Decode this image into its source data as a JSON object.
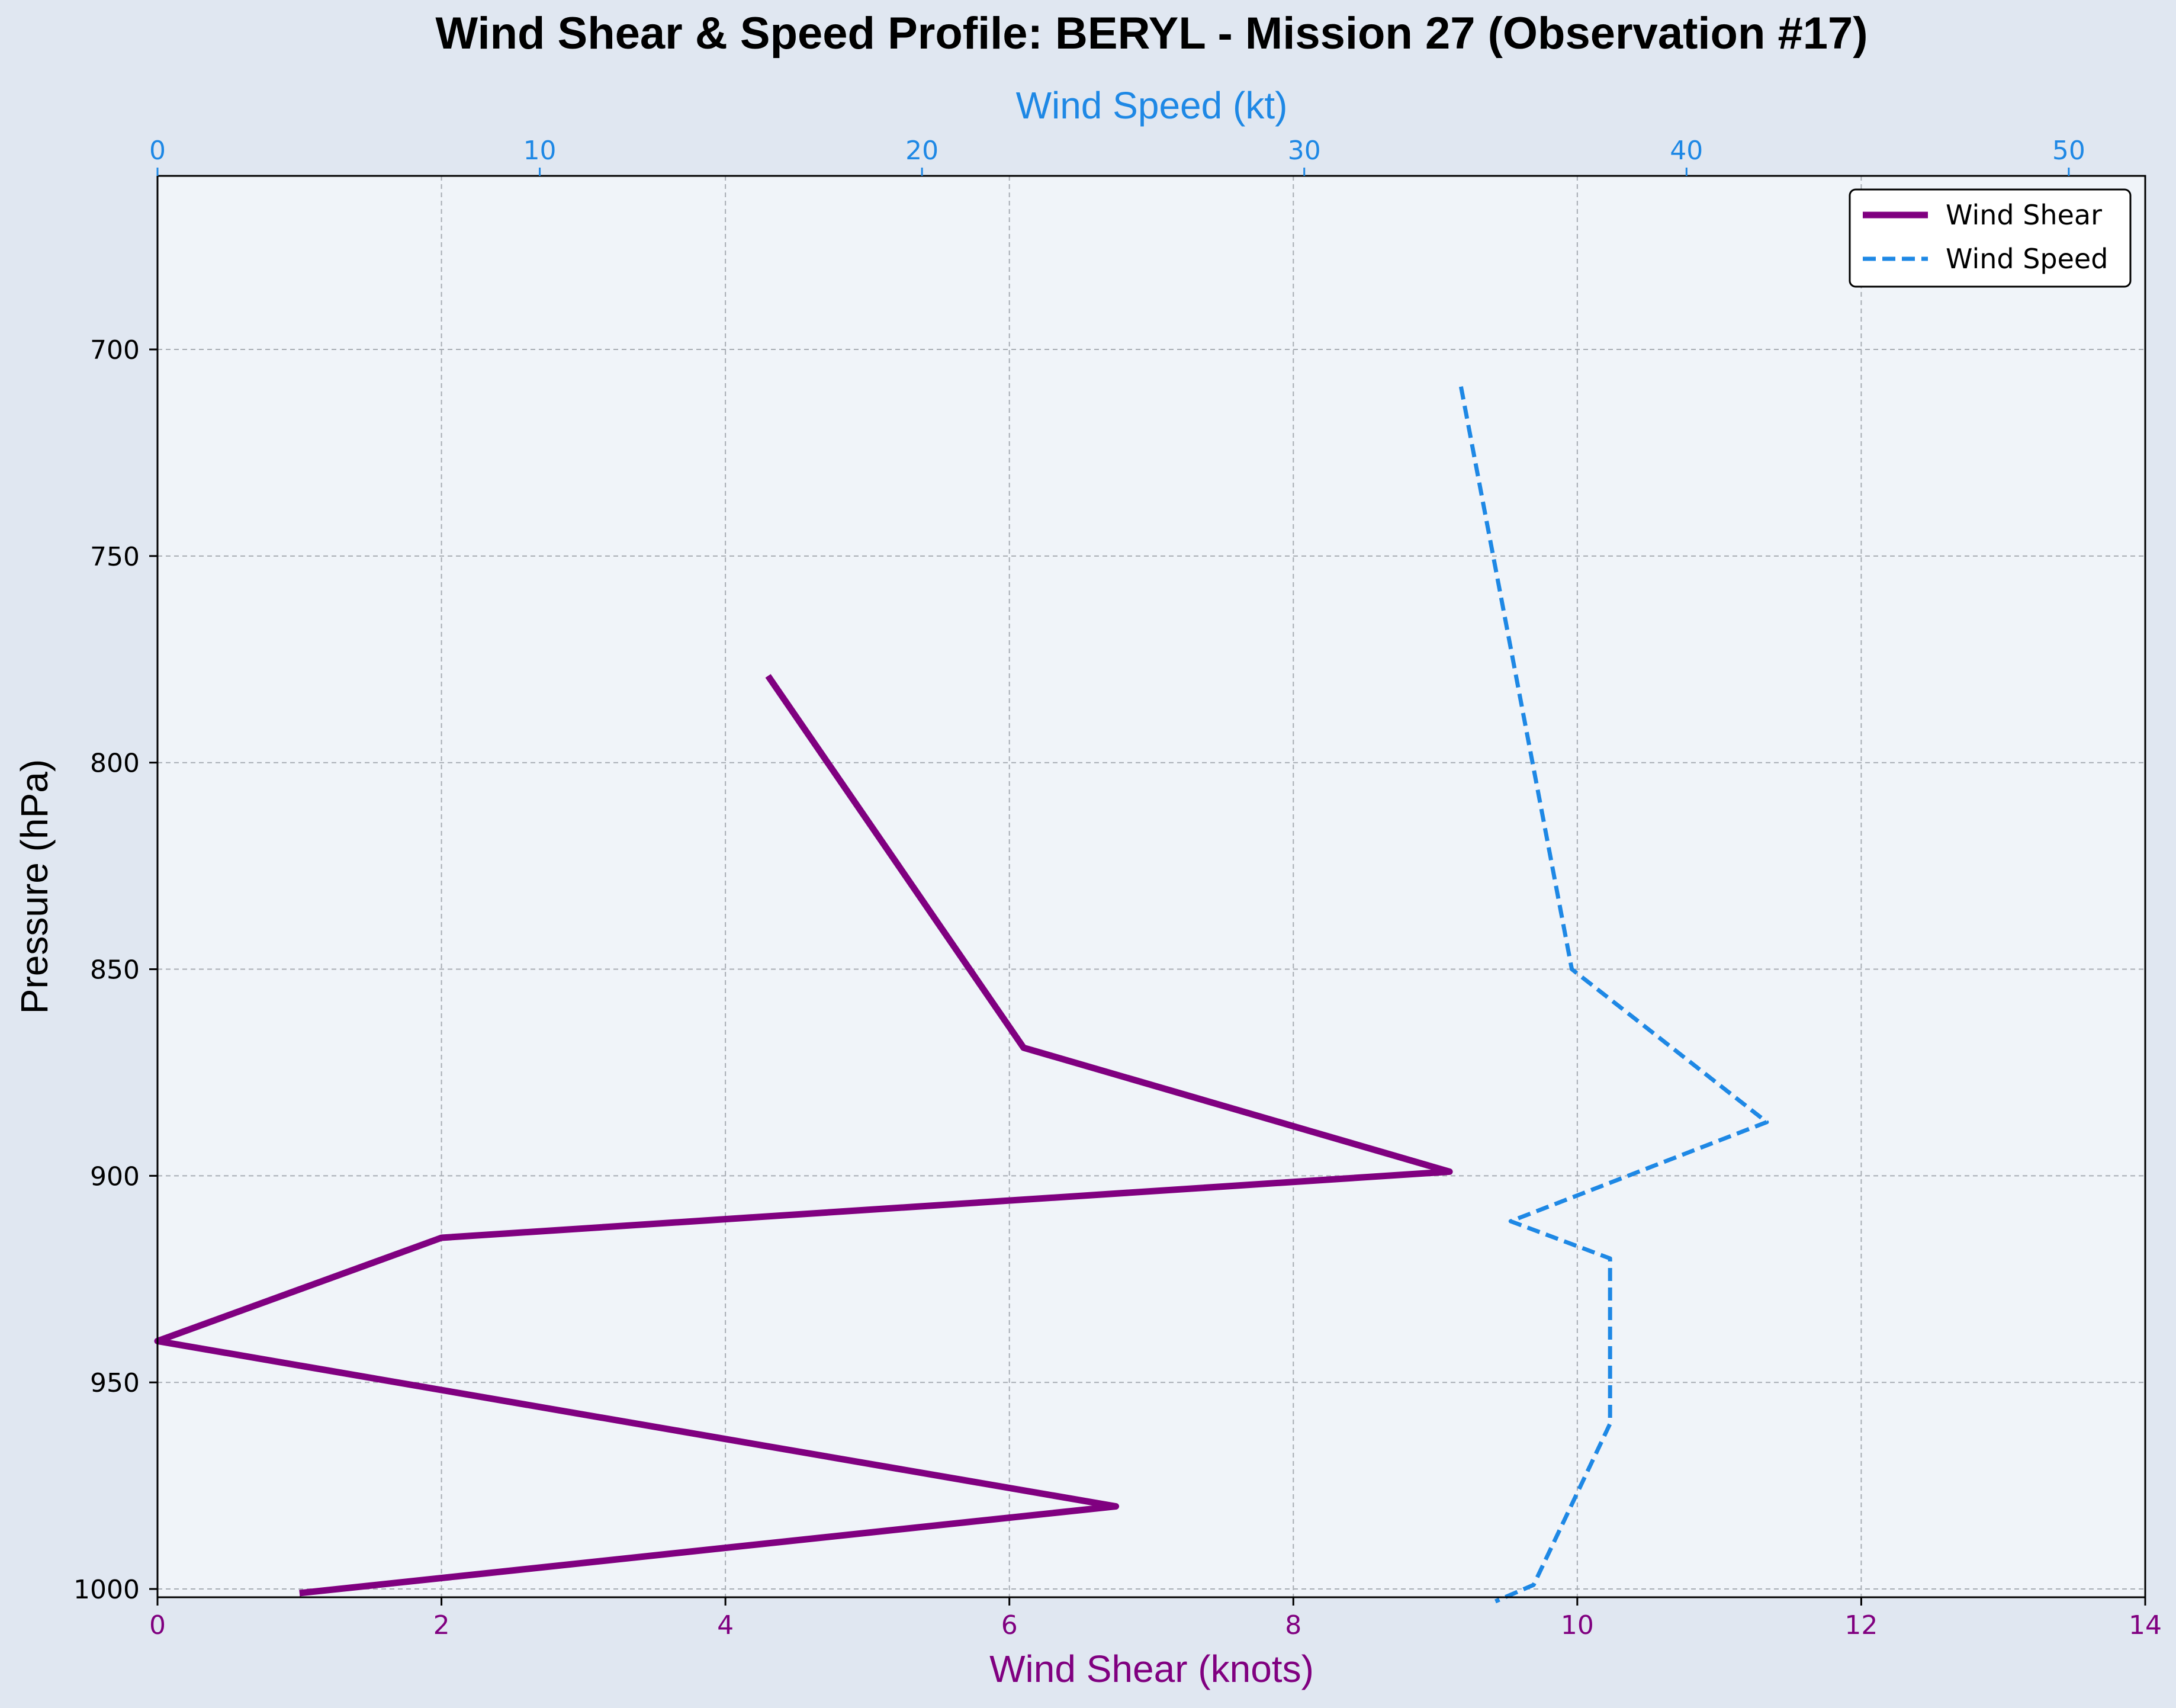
{
  "chart_data": {
    "type": "line",
    "title": "Wind Shear & Speed Profile: BERYL - Mission 27 (Observation #17)",
    "ylabel": "Pressure (hPa)",
    "y_inverted": true,
    "ylim": [
      1002,
      658
    ],
    "yticks": [
      700,
      750,
      800,
      850,
      900,
      950,
      1000
    ],
    "grid": true,
    "legend_position": "top-right",
    "bottom_axis": {
      "label": "Wind Shear (knots)",
      "xlim": [
        0,
        14
      ],
      "ticks": [
        0,
        2,
        4,
        6,
        8,
        10,
        12,
        14
      ],
      "color": "#800080"
    },
    "top_axis": {
      "label": "Wind Speed (kt)",
      "xlim": [
        0,
        52
      ],
      "ticks": [
        0,
        10,
        20,
        30,
        40,
        50
      ],
      "color": "#1e88e5"
    },
    "series": [
      {
        "name": "Wind Shear",
        "axis": "bottom",
        "color": "#800080",
        "style": "solid",
        "points": [
          {
            "x": 4.3,
            "y": 779
          },
          {
            "x": 6.1,
            "y": 869
          },
          {
            "x": 9.1,
            "y": 899
          },
          {
            "x": 2.0,
            "y": 915
          },
          {
            "x": 0.0,
            "y": 940
          },
          {
            "x": 6.75,
            "y": 980
          },
          {
            "x": 1.0,
            "y": 1001
          }
        ]
      },
      {
        "name": "Wind Speed",
        "axis": "top",
        "color": "#1e88e5",
        "style": "dashed",
        "points": [
          {
            "x": 34.1,
            "y": 709
          },
          {
            "x": 37.0,
            "y": 850
          },
          {
            "x": 42.1,
            "y": 887
          },
          {
            "x": 35.4,
            "y": 911
          },
          {
            "x": 38.0,
            "y": 920
          },
          {
            "x": 38.0,
            "y": 960
          },
          {
            "x": 36.0,
            "y": 999
          },
          {
            "x": 35.0,
            "y": 1003
          }
        ]
      }
    ]
  }
}
